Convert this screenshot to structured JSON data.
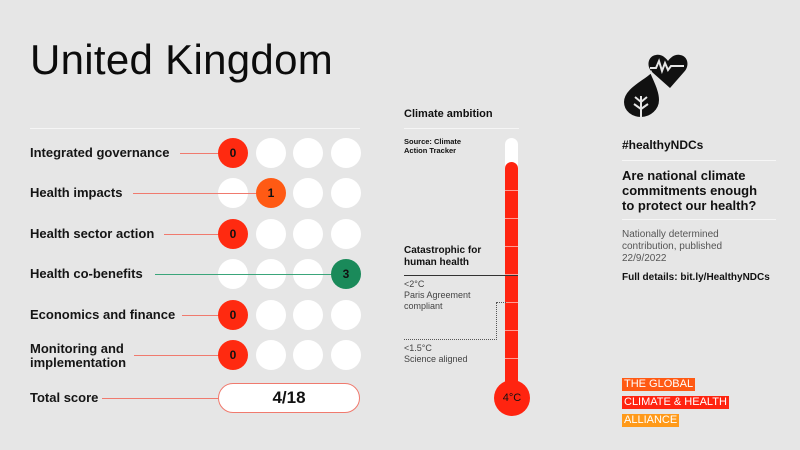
{
  "header": {
    "title": "United Kingdom"
  },
  "scorecard": {
    "max_per_category": 3,
    "rows": [
      {
        "label": "Integrated governance",
        "score": "0",
        "score_index": 0,
        "color": "#ff2a10",
        "line_color": "#f07a6e"
      },
      {
        "label": "Health impacts",
        "score": "1",
        "score_index": 1,
        "color": "#ff5a14",
        "line_color": "#f07a6e"
      },
      {
        "label": "Health sector action",
        "score": "0",
        "score_index": 0,
        "color": "#ff2a10",
        "line_color": "#f07a6e"
      },
      {
        "label": "Health co-benefits",
        "score": "3",
        "score_index": 3,
        "color": "#1a8a5a",
        "line_color": "#3aa57a"
      },
      {
        "label": "Economics and finance",
        "score": "0",
        "score_index": 0,
        "color": "#ff2a10",
        "line_color": "#f07a6e"
      },
      {
        "label_line1": "Monitoring and",
        "label_line2": "implementation",
        "label": "Monitoring and implementation",
        "score": "0",
        "score_index": 0,
        "color": "#ff2a10",
        "line_color": "#f07a6e"
      }
    ],
    "total": {
      "label": "Total score",
      "value": "4/18"
    }
  },
  "climate": {
    "heading": "Climate ambition",
    "source_line1": "Source: Climate",
    "source_line2": "Action Tracker",
    "catastrophic_line1": "Catastrophic for",
    "catastrophic_line2": "human health",
    "paris_line1": "<2°C",
    "paris_line2": "Paris Agreement",
    "paris_line3": "compliant",
    "science_line1": "<1.5°C",
    "science_line2": "Science aligned",
    "thermometer_value": "4°C",
    "thermometer_color": "#ff2410"
  },
  "sidebar": {
    "icon": "heart-leaf-icon",
    "hashtag": "#healthyNDCs",
    "question_line1": "Are national climate",
    "question_line2": "commitments enough",
    "question_line3": "to protect our health?",
    "ndc_line1": "Nationally determined",
    "ndc_line2": "contribution, published",
    "ndc_line3": "22/9/2022",
    "full_details": "Full details: bit.ly/HealthyNDCs"
  },
  "logo": {
    "line1": "THE GLOBAL",
    "line2": "CLIMATE & HEALTH",
    "line3": "ALLIANCE",
    "colors": [
      "#ff5a14",
      "#ff2410",
      "#ff9a1a"
    ]
  }
}
